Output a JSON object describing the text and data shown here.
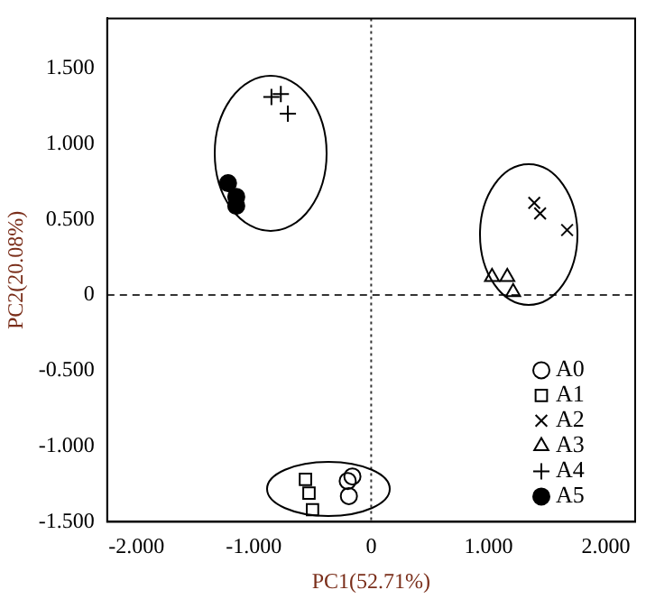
{
  "chart_data": {
    "type": "scatter",
    "xlabel": "PC1(52.71%)",
    "ylabel": "PC2(20.08%)",
    "xlim": [
      -2.25,
      2.25
    ],
    "ylim": [
      -1.5,
      1.83
    ],
    "xticks": [
      {
        "value": -2,
        "label": "-2.000"
      },
      {
        "value": -1,
        "label": "-1.000"
      },
      0,
      {
        "value": 1,
        "label": "1.000"
      },
      {
        "value": 2,
        "label": "2.000"
      }
    ],
    "yticks": [
      {
        "value": -1.5,
        "label": "-1.500"
      },
      {
        "value": -1,
        "label": "-1.000"
      },
      {
        "value": -0.5,
        "label": "-0.500"
      },
      0,
      {
        "value": 0.5,
        "label": "0.500"
      },
      {
        "value": 1,
        "label": "1.000"
      },
      {
        "value": 1.5,
        "label": "1.500"
      }
    ],
    "grid": false,
    "legend": "bottom right",
    "ref_lines": [
      {
        "axis": "x",
        "value": 0,
        "line_style": "dotted"
      },
      {
        "axis": "y",
        "value": 0,
        "line_style": "dashed"
      }
    ],
    "series": [
      {
        "name": "A0",
        "color": "#000000",
        "marker": "circle",
        "x": [
          -0.16,
          -0.2,
          -0.19
        ],
        "values": [
          -1.2,
          -1.23,
          -1.33
        ]
      },
      {
        "name": "A1",
        "color": "#000000",
        "marker": "square",
        "x": [
          -0.56,
          -0.53,
          -0.5
        ],
        "values": [
          -1.22,
          -1.31,
          -1.42
        ]
      },
      {
        "name": "A2",
        "color": "#000000",
        "marker": "x",
        "x": [
          1.39,
          1.44,
          1.67
        ],
        "values": [
          0.61,
          0.54,
          0.43
        ]
      },
      {
        "name": "A3",
        "color": "#000000",
        "marker": "triangle",
        "x": [
          1.03,
          1.16,
          1.21
        ],
        "values": [
          0.12,
          0.12,
          0.02
        ]
      },
      {
        "name": "A4",
        "color": "#000000",
        "marker": "cross",
        "x": [
          -0.85,
          -0.77,
          -0.71
        ],
        "values": [
          1.31,
          1.33,
          1.2
        ]
      },
      {
        "name": "A5",
        "color": "#000000",
        "marker": "circle_filled",
        "x": [
          -1.22,
          -1.15,
          -1.15
        ],
        "values": [
          0.74,
          0.65,
          0.59
        ]
      }
    ]
  }
}
